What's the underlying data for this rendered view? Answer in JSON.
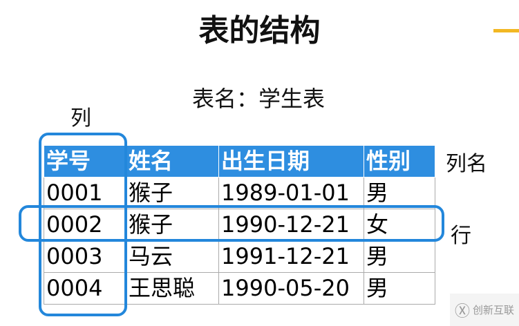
{
  "title": "表的结构",
  "subtitle": "表名：学生表",
  "labels": {
    "column": "列",
    "column_name": "列名",
    "row": "行"
  },
  "table": {
    "headers": [
      "学号",
      "姓名",
      "出生日期",
      "性别"
    ],
    "rows": [
      [
        "0001",
        "猴子",
        "1989-01-01",
        "男"
      ],
      [
        "0002",
        "猴子",
        "1990-12-21",
        "女"
      ],
      [
        "0003",
        "马云",
        "1991-12-21",
        "男"
      ],
      [
        "0004",
        "王思聪",
        "1990-05-20",
        "男"
      ]
    ]
  },
  "colors": {
    "header": "#2e8ee0",
    "highlight": "#2387db",
    "accent": "#f2b823"
  },
  "watermark": "创新互联"
}
